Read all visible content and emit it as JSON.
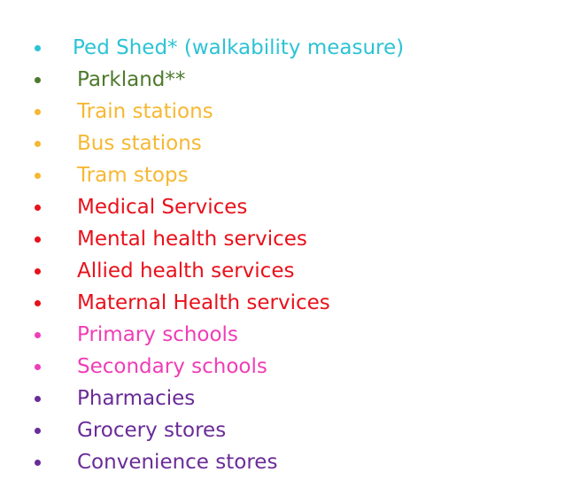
{
  "items": [
    {
      "text": "Ped Shed* (walkability measure)",
      "color": "#2cc3d5"
    },
    {
      "text": "Parkland**",
      "color": "#4d7a2c"
    },
    {
      "text": "Train stations",
      "color": "#f6b833"
    },
    {
      "text": "Bus stations",
      "color": "#f6b833"
    },
    {
      "text": "Tram stops",
      "color": "#f6b833"
    },
    {
      "text": "Medical Services",
      "color": "#e8111b"
    },
    {
      "text": "Mental health services",
      "color": "#e8111b"
    },
    {
      "text": "Allied health services",
      "color": "#e8111b"
    },
    {
      "text": "Maternal Health services",
      "color": "#e8111b"
    },
    {
      "text": "Primary schools",
      "color": "#f03db6"
    },
    {
      "text": "Secondary schools",
      "color": "#f03db6"
    },
    {
      "text": "Pharmacies",
      "color": "#6a2c98"
    },
    {
      "text": "Grocery stores",
      "color": "#6a2c98"
    },
    {
      "text": "Convenience stores",
      "color": "#6a2c98"
    }
  ]
}
